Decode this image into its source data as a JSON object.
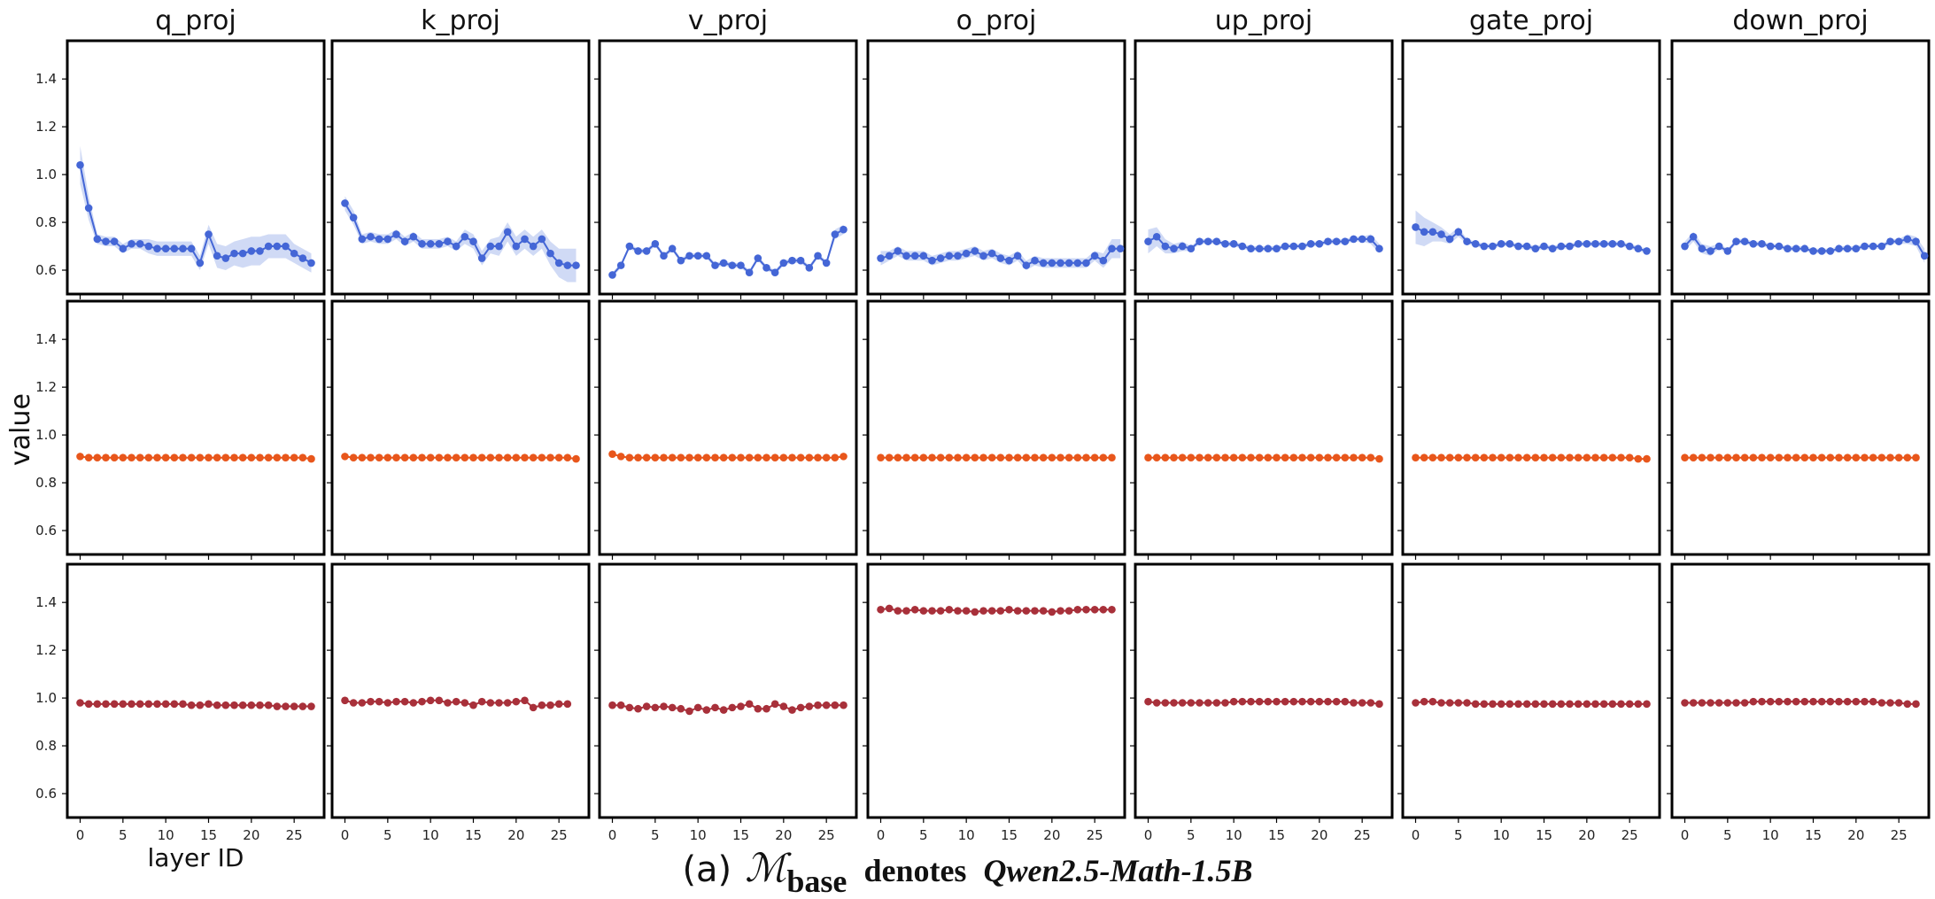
{
  "colors": {
    "row1_line": "#4466d6",
    "row1_band": "#b7c6f0",
    "row2_line": "#e8561b",
    "row3_line": "#a8303a"
  },
  "caption": {
    "label": "(a)",
    "symbol": "ℳ",
    "subscript": "base",
    "denotes": "denotes",
    "model": "Qwen2.5-Math-1.5B"
  },
  "chart_data": {
    "type": "line",
    "layout": "grid 3 rows x 7 columns, shared axes",
    "columns": [
      "q_proj",
      "k_proj",
      "v_proj",
      "o_proj",
      "up_proj",
      "gate_proj",
      "down_proj"
    ],
    "ylabel": "value",
    "xlabel": "layer ID",
    "xlim": [
      -1.5,
      28.5
    ],
    "ylim": [
      0.5,
      1.56
    ],
    "xticks": [
      0,
      5,
      10,
      15,
      20,
      25
    ],
    "yticks": [
      0.6,
      0.8,
      1.0,
      1.2,
      1.4
    ],
    "ytick_labels": [
      "0.6",
      "0.8",
      "1.0",
      "1.2",
      "1.4"
    ],
    "xtick_labels": [
      "0",
      "5",
      "10",
      "15",
      "20",
      "25"
    ],
    "rows": [
      {
        "name": "row1",
        "color": "#4466d6",
        "band": true,
        "series": [
          {
            "name": "q_proj",
            "values": [
              1.04,
              0.86,
              0.73,
              0.72,
              0.72,
              0.69,
              0.71,
              0.71,
              0.7,
              0.69,
              0.69,
              0.69,
              0.69,
              0.69,
              0.63,
              0.75,
              0.66,
              0.65,
              0.67,
              0.67,
              0.68,
              0.68,
              0.7,
              0.7,
              0.7,
              0.67,
              0.65,
              0.63
            ],
            "band_halfwidth": [
              0.08,
              0.05,
              0.02,
              0.02,
              0.02,
              0.02,
              0.02,
              0.02,
              0.03,
              0.03,
              0.03,
              0.03,
              0.03,
              0.03,
              0.03,
              0.04,
              0.05,
              0.05,
              0.05,
              0.06,
              0.06,
              0.06,
              0.05,
              0.05,
              0.05,
              0.04,
              0.04,
              0.04
            ]
          },
          {
            "name": "k_proj",
            "values": [
              0.88,
              0.82,
              0.73,
              0.74,
              0.73,
              0.73,
              0.75,
              0.72,
              0.74,
              0.71,
              0.71,
              0.71,
              0.72,
              0.7,
              0.74,
              0.72,
              0.65,
              0.7,
              0.7,
              0.76,
              0.7,
              0.73,
              0.7,
              0.73,
              0.67,
              0.63,
              0.62,
              0.62
            ],
            "band_halfwidth": [
              0.03,
              0.03,
              0.02,
              0.02,
              0.02,
              0.02,
              0.02,
              0.02,
              0.02,
              0.02,
              0.02,
              0.02,
              0.02,
              0.02,
              0.03,
              0.03,
              0.03,
              0.03,
              0.04,
              0.04,
              0.04,
              0.04,
              0.04,
              0.04,
              0.05,
              0.06,
              0.07,
              0.07
            ]
          },
          {
            "name": "v_proj",
            "values": [
              0.58,
              0.62,
              0.7,
              0.68,
              0.68,
              0.71,
              0.66,
              0.69,
              0.64,
              0.66,
              0.66,
              0.66,
              0.62,
              0.63,
              0.62,
              0.62,
              0.59,
              0.65,
              0.61,
              0.59,
              0.63,
              0.64,
              0.64,
              0.61,
              0.66,
              0.63,
              0.75,
              0.77
            ],
            "band_halfwidth": [
              0.01,
              0.01,
              0.01,
              0.01,
              0.01,
              0.01,
              0.01,
              0.01,
              0.01,
              0.01,
              0.01,
              0.01,
              0.01,
              0.01,
              0.01,
              0.01,
              0.01,
              0.01,
              0.01,
              0.01,
              0.01,
              0.01,
              0.01,
              0.01,
              0.01,
              0.01,
              0.02,
              0.02
            ]
          },
          {
            "name": "o_proj",
            "values": [
              0.65,
              0.66,
              0.68,
              0.66,
              0.66,
              0.66,
              0.64,
              0.65,
              0.66,
              0.66,
              0.67,
              0.68,
              0.66,
              0.67,
              0.65,
              0.64,
              0.66,
              0.62,
              0.64,
              0.63,
              0.63,
              0.63,
              0.63,
              0.63,
              0.63,
              0.66,
              0.64,
              0.69,
              0.69
            ],
            "band_halfwidth": [
              0.03,
              0.02,
              0.02,
              0.02,
              0.02,
              0.02,
              0.02,
              0.02,
              0.02,
              0.02,
              0.02,
              0.02,
              0.02,
              0.02,
              0.02,
              0.02,
              0.02,
              0.02,
              0.02,
              0.02,
              0.02,
              0.02,
              0.02,
              0.02,
              0.02,
              0.02,
              0.03,
              0.04,
              0.04
            ]
          },
          {
            "name": "up_proj",
            "values": [
              0.72,
              0.74,
              0.7,
              0.69,
              0.7,
              0.69,
              0.72,
              0.72,
              0.72,
              0.71,
              0.71,
              0.7,
              0.69,
              0.69,
              0.69,
              0.69,
              0.7,
              0.7,
              0.7,
              0.71,
              0.71,
              0.72,
              0.72,
              0.72,
              0.73,
              0.73,
              0.73,
              0.69
            ],
            "band_halfwidth": [
              0.05,
              0.04,
              0.03,
              0.02,
              0.02,
              0.01,
              0.01,
              0.01,
              0.01,
              0.01,
              0.01,
              0.01,
              0.01,
              0.01,
              0.01,
              0.01,
              0.01,
              0.01,
              0.01,
              0.01,
              0.01,
              0.01,
              0.01,
              0.01,
              0.01,
              0.01,
              0.02,
              0.02
            ]
          },
          {
            "name": "gate_proj",
            "values": [
              0.78,
              0.76,
              0.76,
              0.75,
              0.73,
              0.76,
              0.72,
              0.71,
              0.7,
              0.7,
              0.71,
              0.71,
              0.7,
              0.7,
              0.69,
              0.7,
              0.69,
              0.7,
              0.7,
              0.71,
              0.71,
              0.71,
              0.71,
              0.71,
              0.71,
              0.7,
              0.69,
              0.68
            ],
            "band_halfwidth": [
              0.07,
              0.06,
              0.04,
              0.03,
              0.02,
              0.02,
              0.01,
              0.01,
              0.01,
              0.01,
              0.01,
              0.01,
              0.01,
              0.01,
              0.01,
              0.01,
              0.01,
              0.01,
              0.01,
              0.01,
              0.01,
              0.01,
              0.01,
              0.01,
              0.01,
              0.01,
              0.01,
              0.01
            ]
          },
          {
            "name": "down_proj",
            "values": [
              0.7,
              0.74,
              0.69,
              0.68,
              0.7,
              0.68,
              0.72,
              0.72,
              0.71,
              0.71,
              0.7,
              0.7,
              0.69,
              0.69,
              0.69,
              0.68,
              0.68,
              0.68,
              0.69,
              0.69,
              0.69,
              0.7,
              0.7,
              0.7,
              0.72,
              0.72,
              0.73,
              0.72,
              0.66
            ],
            "band_halfwidth": [
              0.02,
              0.02,
              0.02,
              0.02,
              0.01,
              0.01,
              0.01,
              0.01,
              0.01,
              0.01,
              0.01,
              0.01,
              0.01,
              0.01,
              0.01,
              0.01,
              0.01,
              0.01,
              0.01,
              0.01,
              0.01,
              0.01,
              0.01,
              0.01,
              0.01,
              0.01,
              0.02,
              0.02,
              0.03
            ]
          }
        ]
      },
      {
        "name": "row2",
        "color": "#e8561b",
        "band": false,
        "series": [
          {
            "name": "q_proj",
            "values": [
              0.91,
              0.905,
              0.905,
              0.905,
              0.905,
              0.905,
              0.905,
              0.905,
              0.905,
              0.905,
              0.905,
              0.905,
              0.905,
              0.905,
              0.905,
              0.905,
              0.905,
              0.905,
              0.905,
              0.905,
              0.905,
              0.905,
              0.905,
              0.905,
              0.905,
              0.905,
              0.905,
              0.9
            ]
          },
          {
            "name": "k_proj",
            "values": [
              0.91,
              0.905,
              0.905,
              0.905,
              0.905,
              0.905,
              0.905,
              0.905,
              0.905,
              0.905,
              0.905,
              0.905,
              0.905,
              0.905,
              0.905,
              0.905,
              0.905,
              0.905,
              0.905,
              0.905,
              0.905,
              0.905,
              0.905,
              0.905,
              0.905,
              0.905,
              0.905,
              0.9
            ]
          },
          {
            "name": "v_proj",
            "values": [
              0.92,
              0.91,
              0.905,
              0.905,
              0.905,
              0.905,
              0.905,
              0.905,
              0.905,
              0.905,
              0.905,
              0.905,
              0.905,
              0.905,
              0.905,
              0.905,
              0.905,
              0.905,
              0.905,
              0.905,
              0.905,
              0.905,
              0.905,
              0.905,
              0.905,
              0.905,
              0.905,
              0.91
            ]
          },
          {
            "name": "o_proj",
            "values": [
              0.905,
              0.905,
              0.905,
              0.905,
              0.905,
              0.905,
              0.905,
              0.905,
              0.905,
              0.905,
              0.905,
              0.905,
              0.905,
              0.905,
              0.905,
              0.905,
              0.905,
              0.905,
              0.905,
              0.905,
              0.905,
              0.905,
              0.905,
              0.905,
              0.905,
              0.905,
              0.905,
              0.905
            ]
          },
          {
            "name": "up_proj",
            "values": [
              0.905,
              0.905,
              0.905,
              0.905,
              0.905,
              0.905,
              0.905,
              0.905,
              0.905,
              0.905,
              0.905,
              0.905,
              0.905,
              0.905,
              0.905,
              0.905,
              0.905,
              0.905,
              0.905,
              0.905,
              0.905,
              0.905,
              0.905,
              0.905,
              0.905,
              0.905,
              0.905,
              0.9
            ]
          },
          {
            "name": "gate_proj",
            "values": [
              0.905,
              0.905,
              0.905,
              0.905,
              0.905,
              0.905,
              0.905,
              0.905,
              0.905,
              0.905,
              0.905,
              0.905,
              0.905,
              0.905,
              0.905,
              0.905,
              0.905,
              0.905,
              0.905,
              0.905,
              0.905,
              0.905,
              0.905,
              0.905,
              0.905,
              0.905,
              0.9,
              0.9
            ]
          },
          {
            "name": "down_proj",
            "values": [
              0.905,
              0.905,
              0.905,
              0.905,
              0.905,
              0.905,
              0.905,
              0.905,
              0.905,
              0.905,
              0.905,
              0.905,
              0.905,
              0.905,
              0.905,
              0.905,
              0.905,
              0.905,
              0.905,
              0.905,
              0.905,
              0.905,
              0.905,
              0.905,
              0.905,
              0.905,
              0.905,
              0.905
            ]
          }
        ]
      },
      {
        "name": "row3",
        "color": "#a8303a",
        "band": false,
        "series": [
          {
            "name": "q_proj",
            "values": [
              0.98,
              0.975,
              0.975,
              0.975,
              0.975,
              0.975,
              0.975,
              0.975,
              0.975,
              0.975,
              0.975,
              0.975,
              0.975,
              0.97,
              0.97,
              0.975,
              0.97,
              0.97,
              0.97,
              0.97,
              0.97,
              0.97,
              0.97,
              0.965,
              0.965,
              0.965,
              0.965,
              0.965
            ]
          },
          {
            "name": "k_proj",
            "values": [
              0.99,
              0.98,
              0.98,
              0.985,
              0.985,
              0.98,
              0.985,
              0.985,
              0.98,
              0.985,
              0.99,
              0.99,
              0.98,
              0.985,
              0.98,
              0.97,
              0.985,
              0.98,
              0.98,
              0.98,
              0.985,
              0.99,
              0.96,
              0.97,
              0.97,
              0.975,
              0.975
            ]
          },
          {
            "name": "v_proj",
            "values": [
              0.97,
              0.97,
              0.96,
              0.955,
              0.965,
              0.96,
              0.965,
              0.96,
              0.955,
              0.945,
              0.96,
              0.95,
              0.96,
              0.95,
              0.96,
              0.965,
              0.975,
              0.955,
              0.955,
              0.975,
              0.965,
              0.95,
              0.96,
              0.965,
              0.97,
              0.97,
              0.97,
              0.97
            ]
          },
          {
            "name": "o_proj",
            "values": [
              1.37,
              1.375,
              1.365,
              1.365,
              1.37,
              1.365,
              1.365,
              1.365,
              1.37,
              1.365,
              1.365,
              1.36,
              1.365,
              1.365,
              1.365,
              1.37,
              1.365,
              1.365,
              1.365,
              1.365,
              1.36,
              1.365,
              1.365,
              1.37,
              1.37,
              1.37,
              1.37,
              1.37
            ]
          },
          {
            "name": "up_proj",
            "values": [
              0.985,
              0.98,
              0.98,
              0.98,
              0.98,
              0.98,
              0.98,
              0.98,
              0.98,
              0.98,
              0.985,
              0.985,
              0.985,
              0.985,
              0.985,
              0.985,
              0.985,
              0.985,
              0.985,
              0.985,
              0.985,
              0.985,
              0.985,
              0.985,
              0.98,
              0.98,
              0.98,
              0.975
            ]
          },
          {
            "name": "gate_proj",
            "values": [
              0.98,
              0.985,
              0.985,
              0.98,
              0.98,
              0.98,
              0.98,
              0.975,
              0.975,
              0.975,
              0.975,
              0.975,
              0.975,
              0.975,
              0.975,
              0.975,
              0.975,
              0.975,
              0.975,
              0.975,
              0.975,
              0.975,
              0.975,
              0.975,
              0.975,
              0.975,
              0.975,
              0.975
            ]
          },
          {
            "name": "down_proj",
            "values": [
              0.98,
              0.98,
              0.98,
              0.98,
              0.98,
              0.98,
              0.98,
              0.98,
              0.985,
              0.985,
              0.985,
              0.985,
              0.985,
              0.985,
              0.985,
              0.985,
              0.985,
              0.985,
              0.985,
              0.985,
              0.985,
              0.985,
              0.985,
              0.98,
              0.98,
              0.98,
              0.975,
              0.975
            ]
          }
        ]
      }
    ]
  }
}
